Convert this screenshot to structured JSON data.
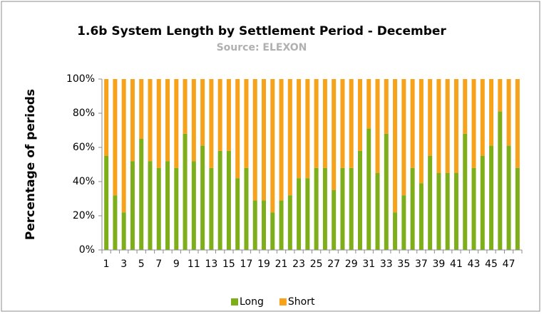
{
  "chart_data": {
    "type": "stacked_bar",
    "title": "1.6b System Length by Settlement Period - December",
    "subtitle": "Source: ELEXON",
    "y_label": "Percentage of periods",
    "categories": [
      "1",
      null,
      "3",
      null,
      "5",
      null,
      "7",
      null,
      "9",
      null,
      "11",
      null,
      "13",
      null,
      "15",
      null,
      "17",
      null,
      "19",
      null,
      "21",
      null,
      "23",
      null,
      "25",
      null,
      "27",
      null,
      "29",
      null,
      "31",
      null,
      "33",
      null,
      "35",
      null,
      "37",
      null,
      "39",
      null,
      "41",
      null,
      "43",
      null,
      "45",
      null,
      "47",
      null
    ],
    "series": [
      {
        "name": "Long",
        "color": "#7fae1b",
        "values": [
          55,
          32,
          22,
          52,
          65,
          52,
          48,
          52,
          48,
          68,
          52,
          61,
          48,
          58,
          58,
          42,
          48,
          29,
          29,
          22,
          29,
          32,
          42,
          42,
          48,
          48,
          35,
          48,
          48,
          58,
          71,
          45,
          68,
          22,
          32,
          48,
          39,
          55,
          45,
          45,
          45,
          68,
          48,
          55,
          61,
          81,
          61,
          48
        ]
      },
      {
        "name": "Short",
        "color": "#f7a21b",
        "values": [
          45,
          68,
          78,
          48,
          35,
          48,
          52,
          48,
          52,
          32,
          48,
          39,
          52,
          42,
          42,
          58,
          52,
          71,
          71,
          78,
          71,
          68,
          58,
          58,
          52,
          52,
          65,
          52,
          52,
          42,
          29,
          55,
          32,
          78,
          68,
          52,
          61,
          45,
          55,
          55,
          55,
          32,
          52,
          45,
          39,
          19,
          39,
          52
        ]
      }
    ],
    "ylim": [
      0,
      100
    ],
    "yticks": [
      {
        "value": 0,
        "label": "0%"
      },
      {
        "value": 20,
        "label": "20%"
      },
      {
        "value": 40,
        "label": "40%"
      },
      {
        "value": 60,
        "label": "60%"
      },
      {
        "value": 80,
        "label": "80%"
      },
      {
        "value": 100,
        "label": "100%"
      }
    ],
    "legend": "bottom"
  }
}
